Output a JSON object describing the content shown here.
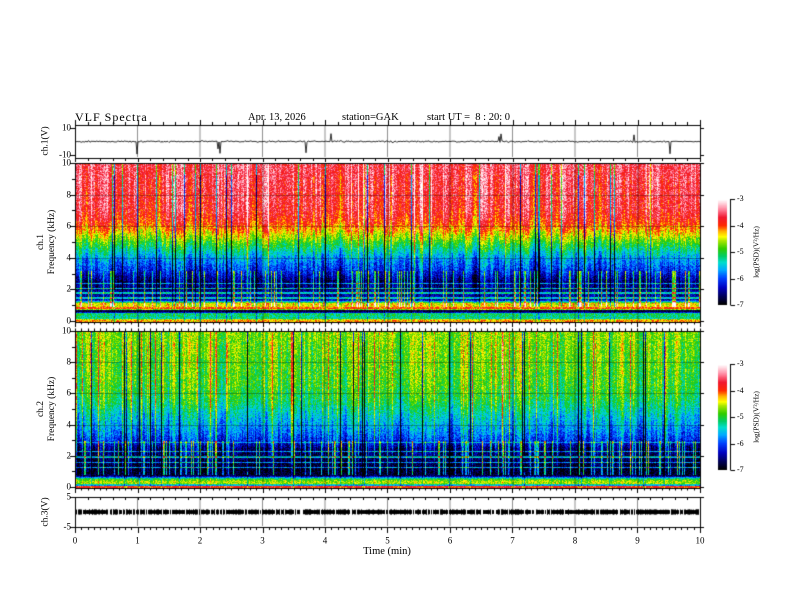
{
  "header": {
    "title": "VLF Spectra",
    "date": "Apr. 13, 2026",
    "station": "station=GAK",
    "start_ut": "start UT =  8 : 20: 0"
  },
  "xaxis": {
    "label": "Time (min)",
    "ticks": [
      0,
      1,
      2,
      3,
      4,
      5,
      6,
      7,
      8,
      9,
      10
    ],
    "minor_step_min": 0.1,
    "lim": [
      0,
      10
    ]
  },
  "colorbar": {
    "label": "log(PSD)(V²/Hz)",
    "ticks": [
      -3,
      -4,
      -5,
      -6,
      -7
    ],
    "range": [
      -7,
      -3
    ]
  },
  "colormap": [
    [
      0.0,
      "#000000"
    ],
    [
      0.07,
      "#000050"
    ],
    [
      0.16,
      "#0000c0"
    ],
    [
      0.25,
      "#0040ff"
    ],
    [
      0.33,
      "#00aaff"
    ],
    [
      0.4,
      "#00ddcc"
    ],
    [
      0.46,
      "#00cc66"
    ],
    [
      0.53,
      "#2ecc00"
    ],
    [
      0.6,
      "#9de400"
    ],
    [
      0.645,
      "#ffff00"
    ],
    [
      0.7,
      "#ffaa00"
    ],
    [
      0.75,
      "#ff2a00"
    ],
    [
      0.83,
      "#f01830"
    ],
    [
      0.9,
      "#ff7d96"
    ],
    [
      0.96,
      "#ffd0da"
    ],
    [
      1.0,
      "#ffffff"
    ]
  ],
  "chart_data": [
    {
      "panel": "ch1-voltage",
      "type": "line",
      "ylabel": "ch.1(V)",
      "yticks": [
        "10",
        "-10"
      ],
      "ylim": [
        -11,
        11
      ],
      "signal": {
        "seed": 42,
        "sigma_v": 0.85,
        "spike_probability": 0.022,
        "spike_down_v": [
          5,
          9.5
        ],
        "spike_up_v": [
          3,
          6.5
        ]
      },
      "description": "Black broadband noise trace around 0 V with intermittent impulsive spikes reaching about -9 V and +6 V over the 10 minute record."
    },
    {
      "panel": "ch1-spectrogram",
      "type": "heatmap",
      "ylabel": [
        "ch.1",
        "Frequency (kHz)"
      ],
      "yticks": [
        0,
        2,
        4,
        6,
        8,
        10
      ],
      "f_lim_khz": [
        0,
        10
      ],
      "seed": 7,
      "psd_profile_f_v": [
        [
          0.0,
          -4.2
        ],
        [
          0.1,
          -4.2
        ],
        [
          0.18,
          -5.3
        ],
        [
          0.5,
          -5.1
        ],
        [
          0.6,
          -6.8
        ],
        [
          0.7,
          -6.8
        ],
        [
          0.78,
          -3.9
        ],
        [
          0.88,
          -4.0
        ],
        [
          0.95,
          -4.4
        ],
        [
          1.15,
          -4.4
        ],
        [
          1.35,
          -6.4
        ],
        [
          2.55,
          -6.6
        ],
        [
          3.2,
          -6.1
        ],
        [
          4.0,
          -5.7
        ],
        [
          4.6,
          -5.2
        ],
        [
          5.2,
          -4.7
        ],
        [
          5.8,
          -4.2
        ],
        [
          6.3,
          -3.9
        ],
        [
          7.0,
          -3.7
        ],
        [
          10.0,
          -3.55
        ]
      ],
      "psd_hlines_f_boost": [
        [
          1.5,
          1.0
        ],
        [
          1.8,
          1.1
        ],
        [
          2.1,
          1.1
        ],
        [
          2.4,
          0.9
        ]
      ],
      "streaks": {
        "col_sigma": 0.55,
        "dark_p": 0.045,
        "bright_p": 0.05,
        "bright_amt": 0.5
      },
      "low_streak": {
        "p": 0.18,
        "f": [
          0.9,
          3.2
        ],
        "amt": [
          0.9,
          1.8
        ]
      },
      "description": "Red/orange intensity above ~6 kHz with yellow-green vertical striations, blue/dark background 1.3-4 kHz crossed by cyan vertical streaks, narrow cyan horizontal lines near 1.5-2.4 kHz, and strong yellow/red/cyan horizontal bands below 1.2 kHz."
    },
    {
      "panel": "ch2-spectrogram",
      "type": "heatmap",
      "ylabel": [
        "ch.2",
        "Frequency (kHz)"
      ],
      "yticks": [
        0,
        2,
        4,
        6,
        8,
        10
      ],
      "f_lim_khz": [
        0,
        10
      ],
      "seed": 13,
      "psd_profile_f_v": [
        [
          0.0,
          -3.9
        ],
        [
          0.08,
          -3.9
        ],
        [
          0.15,
          -6.5
        ],
        [
          0.22,
          -4.6
        ],
        [
          0.38,
          -4.6
        ],
        [
          0.55,
          -5.0
        ],
        [
          0.75,
          -6.8
        ],
        [
          1.05,
          -6.9
        ],
        [
          2.5,
          -6.6
        ],
        [
          3.0,
          -6.1
        ],
        [
          3.6,
          -5.8
        ],
        [
          4.5,
          -5.5
        ],
        [
          5.5,
          -5.1
        ],
        [
          6.5,
          -4.9
        ],
        [
          10.0,
          -4.7
        ]
      ],
      "psd_hlines_f_boost": [
        [
          1.3,
          1.1
        ],
        [
          1.6,
          1.0
        ],
        [
          1.95,
          1.2
        ],
        [
          2.3,
          1.0
        ],
        [
          2.9,
          0.6
        ]
      ],
      "streaks": {
        "col_sigma": 0.5,
        "dark_p": 0.05,
        "bright_p": 0.09,
        "bright_amt": 0.65
      },
      "low_streak": {
        "p": 0.18,
        "f": [
          0.8,
          3.0
        ],
        "amt": [
          0.9,
          1.8
        ]
      },
      "description": "Green/cyan intensity above ~4 kHz with occasional orange vertical streaks, dark blue/black band 0.8-2.5 kHz crossed by cyan vertical streaks and thin cyan horizontal lines, green-yellow horizontal band near 0.2-0.6 kHz and a thin red line at the bottom edge."
    },
    {
      "panel": "ch3-voltage",
      "type": "line",
      "ylabel": "ch.3(V)",
      "yticks": [
        "5",
        "-5"
      ],
      "ylim": [
        -5,
        5
      ],
      "signal": {
        "seed": 5,
        "band_halfwidth_v": 0.8
      },
      "description": "Flat thick black trace at 0 V for the full 10 minutes."
    }
  ]
}
